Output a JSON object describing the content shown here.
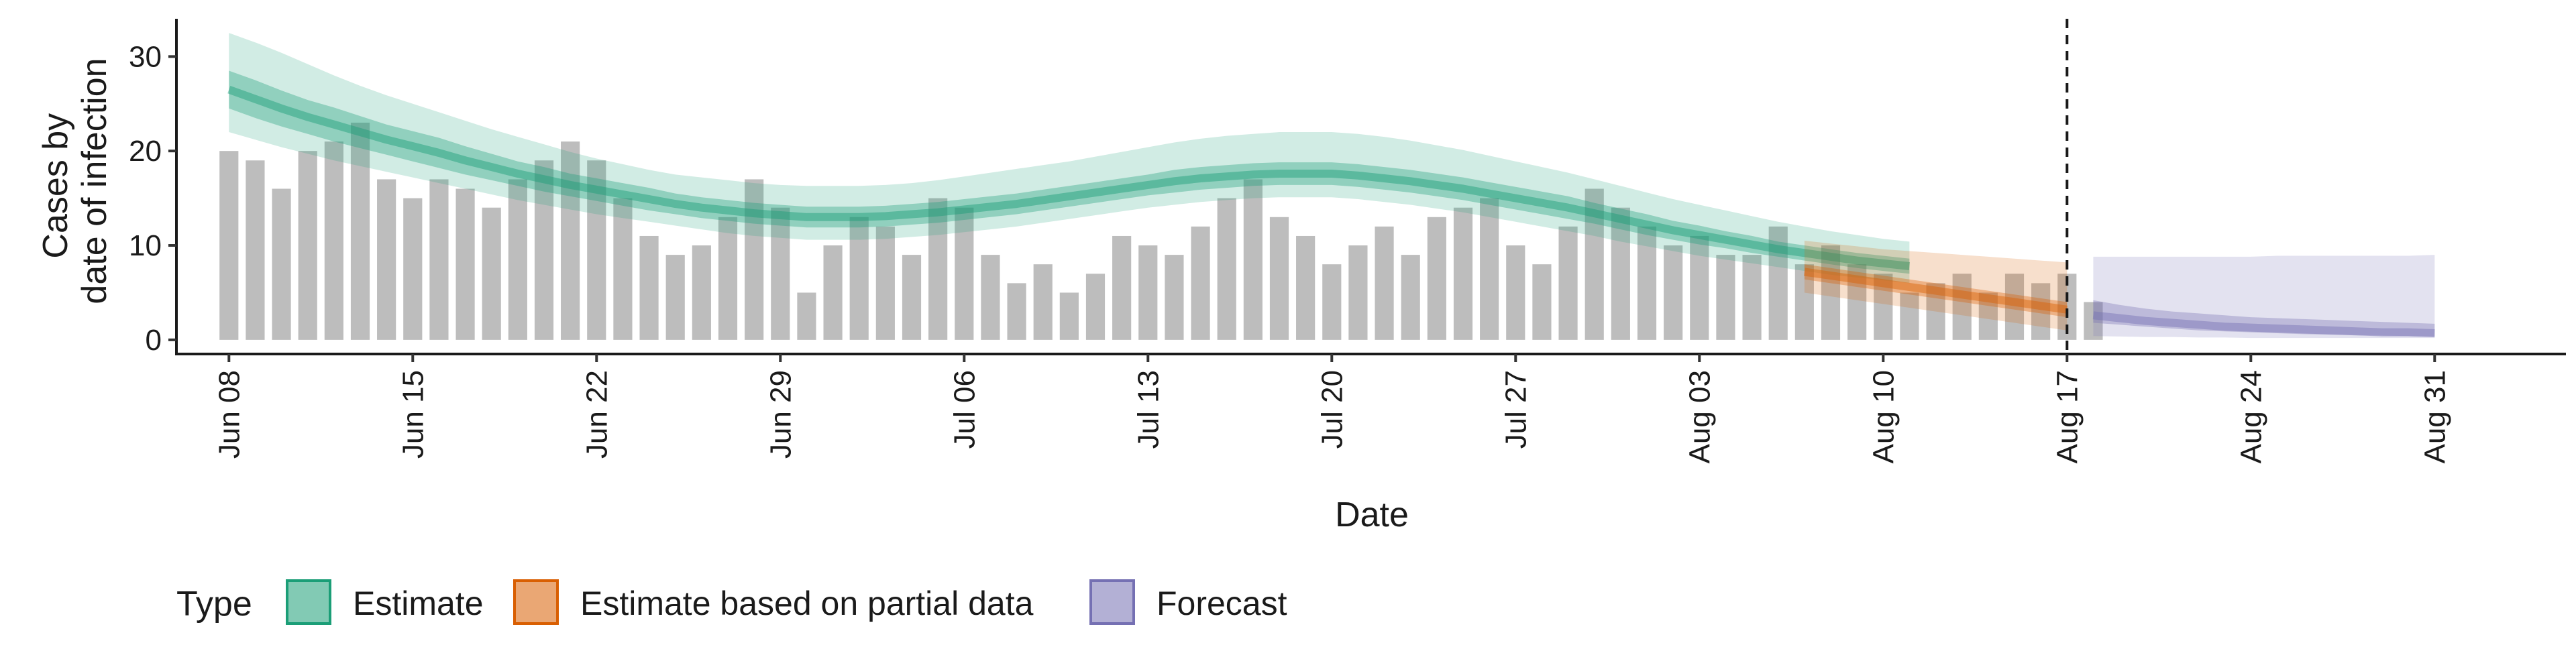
{
  "chart_data": {
    "type": "bar",
    "title": "",
    "xlabel": "Date",
    "ylabel": [
      "Cases by",
      "date of infection"
    ],
    "ylim": [
      -1.5,
      34
    ],
    "yticks": [
      0,
      10,
      20,
      30
    ],
    "x_range": [
      "2020-06-06",
      "2020-09-05"
    ],
    "x_ticks": [
      {
        "date": "2020-06-08",
        "label": "Jun 08"
      },
      {
        "date": "2020-06-15",
        "label": "Jun 15"
      },
      {
        "date": "2020-06-22",
        "label": "Jun 22"
      },
      {
        "date": "2020-06-29",
        "label": "Jun 29"
      },
      {
        "date": "2020-07-06",
        "label": "Jul 06"
      },
      {
        "date": "2020-07-13",
        "label": "Jul 13"
      },
      {
        "date": "2020-07-20",
        "label": "Jul 20"
      },
      {
        "date": "2020-07-27",
        "label": "Jul 27"
      },
      {
        "date": "2020-08-03",
        "label": "Aug 03"
      },
      {
        "date": "2020-08-10",
        "label": "Aug 10"
      },
      {
        "date": "2020-08-17",
        "label": "Aug 17"
      },
      {
        "date": "2020-08-24",
        "label": "Aug 24"
      },
      {
        "date": "2020-08-31",
        "label": "Aug 31"
      }
    ],
    "grid": false,
    "legend_position": "bottom-left",
    "vline_date": "2020-08-17",
    "observed_cases": {
      "start_date": "2020-06-08",
      "color": "#bdbdbd",
      "values": [
        20,
        19,
        16,
        20,
        21,
        23,
        17,
        15,
        17,
        16,
        14,
        17,
        19,
        21,
        19,
        15,
        11,
        9,
        10,
        13,
        17,
        14,
        5,
        10,
        13,
        12,
        9,
        15,
        14,
        9,
        6,
        8,
        5,
        7,
        11,
        10,
        9,
        12,
        15,
        17,
        13,
        11,
        8,
        10,
        12,
        9,
        13,
        14,
        15,
        10,
        8,
        12,
        16,
        14,
        12,
        10,
        11,
        9,
        9,
        12,
        8,
        10,
        8,
        7,
        5,
        6,
        7,
        5,
        7,
        6,
        7,
        4
      ]
    },
    "series": [
      {
        "name": "Estimate",
        "color": "#1b9e77",
        "start_date": "2020-06-08",
        "median": [
          26.5,
          25.5,
          24.5,
          23.6,
          22.8,
          22,
          21.2,
          20.5,
          19.8,
          19,
          18.3,
          17.6,
          17,
          16.4,
          15.9,
          15.4,
          14.9,
          14.4,
          14,
          13.7,
          13.4,
          13.2,
          13,
          13,
          13,
          13.1,
          13.3,
          13.5,
          13.8,
          14.1,
          14.4,
          14.8,
          15.2,
          15.6,
          16,
          16.4,
          16.8,
          17.1,
          17.3,
          17.5,
          17.6,
          17.6,
          17.6,
          17.4,
          17.1,
          16.8,
          16.4,
          16,
          15.5,
          15,
          14.5,
          14,
          13.4,
          12.8,
          12.2,
          11.6,
          11.1,
          10.6,
          10.1,
          9.6,
          9.2,
          8.8,
          8.4,
          8.1,
          7.8
        ],
        "inner_lower": [
          24.5,
          23.5,
          22.6,
          21.8,
          21,
          20.3,
          19.6,
          18.9,
          18.2,
          17.5,
          16.9,
          16.3,
          15.7,
          15.2,
          14.7,
          14.2,
          13.7,
          13.3,
          12.9,
          12.6,
          12.3,
          12.1,
          11.9,
          11.9,
          11.9,
          12,
          12.2,
          12.4,
          12.7,
          13,
          13.3,
          13.7,
          14.1,
          14.5,
          14.9,
          15.3,
          15.6,
          15.9,
          16.1,
          16.3,
          16.4,
          16.4,
          16.4,
          16.2,
          15.9,
          15.6,
          15.2,
          14.8,
          14.3,
          13.8,
          13.3,
          12.8,
          12.3,
          11.7,
          11.1,
          10.6,
          10.1,
          9.7,
          9.2,
          8.8,
          8.4,
          8,
          7.6,
          7.3,
          7
        ],
        "inner_upper": [
          28.5,
          27.5,
          26.4,
          25.4,
          24.6,
          23.7,
          22.8,
          22.1,
          21.4,
          20.5,
          19.7,
          18.9,
          18.3,
          17.6,
          17.1,
          16.6,
          16.1,
          15.5,
          15.1,
          14.8,
          14.5,
          14.3,
          14.1,
          14.1,
          14.1,
          14.2,
          14.4,
          14.6,
          14.9,
          15.2,
          15.5,
          15.9,
          16.3,
          16.7,
          17.1,
          17.5,
          18,
          18.3,
          18.5,
          18.7,
          18.8,
          18.8,
          18.8,
          18.6,
          18.3,
          18,
          17.6,
          17.2,
          16.7,
          16.2,
          15.7,
          15.2,
          14.5,
          13.9,
          13.3,
          12.6,
          12.1,
          11.5,
          11,
          10.4,
          10,
          9.6,
          9.2,
          8.9,
          8.6
        ],
        "outer_lower": [
          22,
          21.2,
          20.4,
          19.7,
          19,
          18.4,
          17.8,
          17.2,
          16.6,
          16,
          15.4,
          14.8,
          14.3,
          13.8,
          13.3,
          12.9,
          12.5,
          12.1,
          11.7,
          11.3,
          11,
          10.8,
          10.6,
          10.6,
          10.6,
          10.7,
          10.9,
          11.1,
          11.4,
          11.7,
          12,
          12.4,
          12.8,
          13.2,
          13.6,
          14,
          14.3,
          14.6,
          14.8,
          15,
          15.1,
          15.1,
          15.1,
          14.9,
          14.6,
          14.3,
          13.9,
          13.5,
          13,
          12.5,
          12,
          11.5,
          11,
          10.4,
          9.9,
          9.4,
          8.9,
          8.5,
          8.1,
          7.7,
          7.3,
          6.9,
          6.6,
          6.3,
          6
        ],
        "outer_upper": [
          32.5,
          31.5,
          30.4,
          29.2,
          28,
          26.9,
          25.9,
          25,
          24.1,
          23.2,
          22.3,
          21.5,
          20.7,
          19.9,
          19.2,
          18.6,
          18,
          17.5,
          17.2,
          16.9,
          16.6,
          16.4,
          16.3,
          16.3,
          16.3,
          16.4,
          16.6,
          16.9,
          17.3,
          17.7,
          18.1,
          18.5,
          18.9,
          19.4,
          19.9,
          20.4,
          20.9,
          21.3,
          21.6,
          21.8,
          22,
          22,
          22,
          21.8,
          21.5,
          21.1,
          20.6,
          20.1,
          19.5,
          18.9,
          18.3,
          17.7,
          17,
          16.3,
          15.6,
          14.9,
          14.3,
          13.7,
          13.1,
          12.5,
          12,
          11.5,
          11.1,
          10.7,
          10.4
        ]
      },
      {
        "name": "Estimate based on partial data",
        "color": "#d95f02",
        "start_date": "2020-08-07",
        "median": [
          7.2,
          6.8,
          6.4,
          6,
          5.6,
          5.2,
          4.8,
          4.4,
          4,
          3.6,
          3.2
        ],
        "inner_lower": [
          6.4,
          6,
          5.6,
          5.2,
          4.8,
          4.4,
          4,
          3.6,
          3.2,
          2.8,
          2.4
        ],
        "inner_upper": [
          8,
          7.6,
          7.2,
          6.8,
          6.4,
          6,
          5.6,
          5.2,
          4.8,
          4.4,
          4
        ],
        "outer_lower": [
          5,
          4.6,
          4.2,
          3.8,
          3.4,
          3,
          2.6,
          2.2,
          1.8,
          1.4,
          1
        ],
        "outer_upper": [
          10.5,
          10.2,
          9.9,
          9.6,
          9.4,
          9.2,
          9,
          8.8,
          8.6,
          8.4,
          8.2
        ]
      },
      {
        "name": "Forecast",
        "color": "#7570b3",
        "start_date": "2020-08-18",
        "median": [
          2.6,
          2.3,
          2,
          1.8,
          1.6,
          1.4,
          1.3,
          1.2,
          1.1,
          1,
          0.9,
          0.8,
          0.8,
          0.7
        ],
        "inner_lower": [
          1.8,
          1.6,
          1.4,
          1.2,
          1,
          0.9,
          0.8,
          0.7,
          0.6,
          0.55,
          0.5,
          0.45,
          0.4,
          0.35
        ],
        "inner_upper": [
          4.2,
          3.7,
          3.3,
          3,
          2.8,
          2.6,
          2.4,
          2.3,
          2.2,
          2.1,
          2,
          1.9,
          1.8,
          1.7
        ],
        "outer_lower": [
          0.4,
          0.35,
          0.3,
          0.3,
          0.25,
          0.25,
          0.2,
          0.2,
          0.2,
          0.2,
          0.2,
          0.2,
          0.2,
          0.2
        ],
        "outer_upper": [
          8.8,
          8.8,
          8.8,
          8.8,
          8.8,
          8.8,
          8.8,
          8.9,
          8.9,
          8.9,
          8.9,
          8.9,
          8.9,
          9
        ]
      }
    ],
    "legend": {
      "title": "Type",
      "items": [
        "Estimate",
        "Estimate based on partial data",
        "Forecast"
      ]
    }
  }
}
